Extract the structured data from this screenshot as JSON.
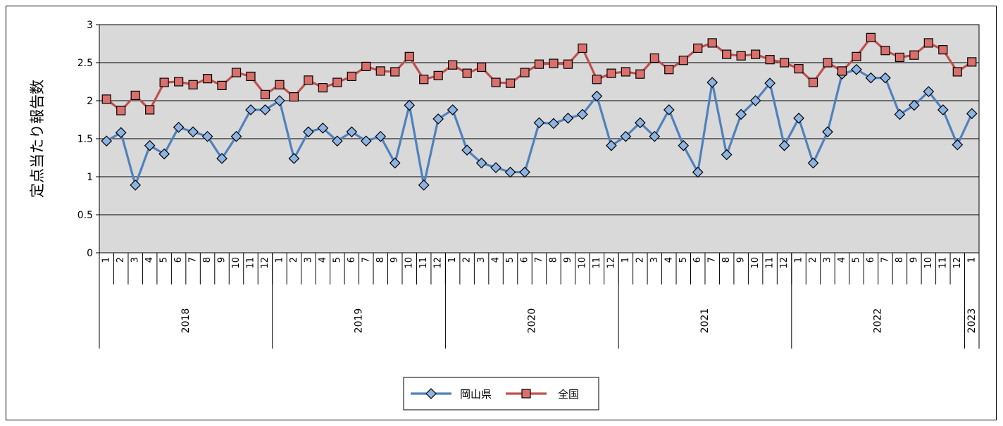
{
  "chart_data": {
    "type": "line",
    "ylabel": "定点当たり報告数",
    "ylim": [
      0,
      3
    ],
    "yticks": [
      "0",
      "0.5",
      "1",
      "1.5",
      "2",
      "2.5",
      "3"
    ],
    "years": [
      {
        "label": "2018",
        "months": [
          "1",
          "2",
          "3",
          "4",
          "5",
          "6",
          "7",
          "8",
          "9",
          "10",
          "11",
          "12"
        ]
      },
      {
        "label": "2019",
        "months": [
          "1",
          "2",
          "3",
          "4",
          "5",
          "6",
          "7",
          "8",
          "9",
          "10",
          "11",
          "12"
        ]
      },
      {
        "label": "2020",
        "months": [
          "1",
          "2",
          "3",
          "4",
          "5",
          "6",
          "7",
          "8",
          "9",
          "10",
          "11",
          "12"
        ]
      },
      {
        "label": "2021",
        "months": [
          "1",
          "2",
          "3",
          "4",
          "5",
          "6",
          "7",
          "8",
          "9",
          "10",
          "11",
          "12"
        ]
      },
      {
        "label": "2022",
        "months": [
          "1",
          "2",
          "3",
          "4",
          "5",
          "6",
          "7",
          "8",
          "9",
          "10",
          "11",
          "12"
        ]
      },
      {
        "label": "2023",
        "months": [
          "1"
        ]
      }
    ],
    "grid": true,
    "legend_position": "bottom",
    "series": [
      {
        "name": "岡山県",
        "color": "#4f81bd",
        "marker": "diamond",
        "values": [
          1.47,
          1.58,
          0.89,
          1.41,
          1.3,
          1.65,
          1.59,
          1.53,
          1.24,
          1.53,
          1.88,
          1.88,
          2.0,
          1.24,
          1.59,
          1.64,
          1.47,
          1.59,
          1.47,
          1.53,
          1.18,
          1.94,
          0.89,
          1.76,
          1.88,
          1.35,
          1.18,
          1.12,
          1.06,
          1.06,
          1.71,
          1.7,
          1.77,
          1.82,
          2.06,
          1.41,
          1.53,
          1.71,
          1.53,
          1.88,
          1.41,
          1.06,
          2.24,
          1.29,
          1.82,
          2.0,
          2.23,
          1.41,
          1.77,
          1.18,
          1.59,
          2.35,
          2.41,
          2.3,
          2.3,
          1.82,
          1.94,
          2.12,
          1.88,
          1.42,
          1.83
        ]
      },
      {
        "name": "全国",
        "color": "#c0504d",
        "marker": "square",
        "values": [
          2.02,
          1.87,
          2.07,
          1.88,
          2.24,
          2.25,
          2.21,
          2.29,
          2.2,
          2.37,
          2.32,
          2.08,
          2.21,
          2.05,
          2.27,
          2.17,
          2.24,
          2.32,
          2.45,
          2.39,
          2.38,
          2.58,
          2.28,
          2.33,
          2.47,
          2.36,
          2.44,
          2.24,
          2.23,
          2.37,
          2.48,
          2.49,
          2.48,
          2.69,
          2.28,
          2.36,
          2.38,
          2.35,
          2.56,
          2.41,
          2.53,
          2.69,
          2.76,
          2.61,
          2.59,
          2.61,
          2.54,
          2.5,
          2.42,
          2.24,
          2.5,
          2.39,
          2.58,
          2.83,
          2.66,
          2.57,
          2.6,
          2.76,
          2.67,
          2.38,
          2.51
        ]
      }
    ]
  }
}
